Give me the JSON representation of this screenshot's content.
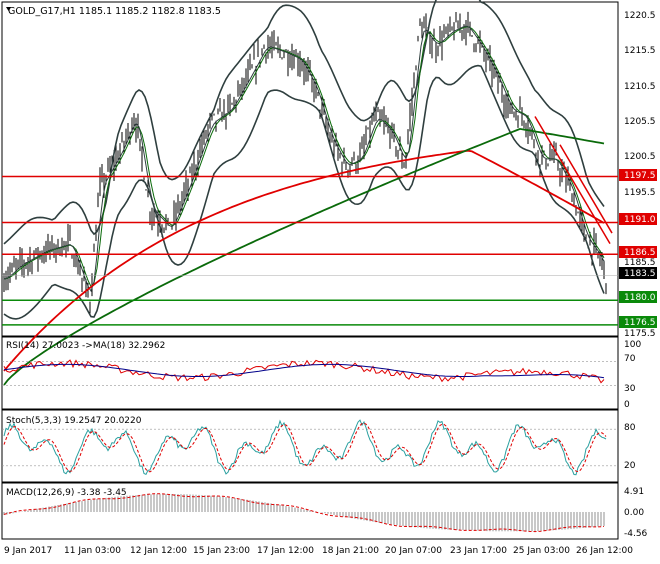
{
  "main": {
    "header": "GOLD_G17,H1  1185.1 1185.2 1182.8 1183.5",
    "ticks": [
      "1220.5",
      "1215.5",
      "1210.5",
      "1205.5",
      "1200.5",
      "1195.5",
      "1185.5",
      "1175.5"
    ],
    "levels": [
      {
        "label": "1197.5",
        "value": 1197.5,
        "color": "#e00000"
      },
      {
        "label": "1191.0",
        "value": 1191.0,
        "color": "#e00000"
      },
      {
        "label": "1186.5",
        "value": 1186.5,
        "color": "#e00000"
      },
      {
        "label": "1180.0",
        "value": 1180.0,
        "color": "#0a8a0a"
      },
      {
        "label": "1176.5",
        "value": 1176.5,
        "color": "#0a8a0a"
      }
    ],
    "current_price": "1183.5"
  },
  "rsi": {
    "header": "RSI(14) 27.0023  ->MA(18) 32.2962",
    "ticks": [
      "100",
      "70",
      "30",
      "0"
    ]
  },
  "stoch": {
    "header": "Stoch(5,3,3) 19.2547 20.0220",
    "ticks": [
      "80",
      "20"
    ]
  },
  "macd": {
    "header": "MACD(12,26,9) -3.38 -3.45",
    "ticks": [
      "4.91",
      "0.00",
      "-4.56"
    ]
  },
  "xaxis": {
    "labels": [
      "9 Jan 2017",
      "11 Jan 03:00",
      "12 Jan 12:00",
      "15 Jan 23:00",
      "17 Jan 12:00",
      "18 Jan 21:00",
      "20 Jan 07:00",
      "23 Jan 17:00",
      "25 Jan 03:00",
      "26 Jan 12:00"
    ]
  },
  "colors": {
    "bull_level": "#0a8a0a",
    "bear_level": "#e00000",
    "price": "#000000",
    "bollinger": "#2f3f3f",
    "ma_fast": "#e00000",
    "ma_slow": "#0a6a0a"
  }
}
